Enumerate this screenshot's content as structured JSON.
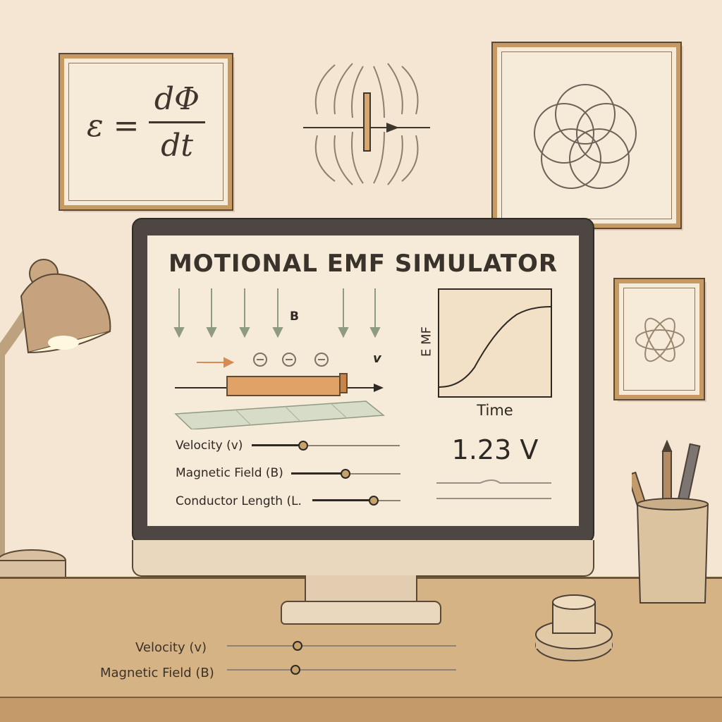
{
  "wall": {
    "equation": {
      "lhs": "ε =",
      "numerator": "dΦ",
      "denominator": "dt"
    }
  },
  "screen": {
    "title": "MOTIONAL EMF SIMULATOR",
    "field_label": "B",
    "velocity_label": "v",
    "graph": {
      "y_label": "E MF",
      "x_label": "Time"
    },
    "emf_readout": "1.23 V",
    "controls": [
      {
        "label": "Velocity (v)",
        "level": 0.35
      },
      {
        "label": "Magnetic Field (B)",
        "level": 0.5
      },
      {
        "label": "Conductor Length (L.",
        "level": 0.7
      }
    ]
  },
  "desk_controls": [
    {
      "label": "Velocity (v)",
      "level": 0.31
    },
    {
      "label": "Magnetic Field (B)",
      "level": 0.3
    }
  ],
  "colors": {
    "wall": "#f4e6d2",
    "frame": "#c79a62",
    "bezel": "#4d4642",
    "screen": "#f6ead8",
    "conductor": "#e0a266",
    "ink": "#2f2924",
    "desk": "#d6b384"
  },
  "icons": [
    "desk-lamp-icon",
    "pencil-cup-icon",
    "knob-icon",
    "field-lines-icon",
    "flower-of-life-icon",
    "atom-icon"
  ]
}
